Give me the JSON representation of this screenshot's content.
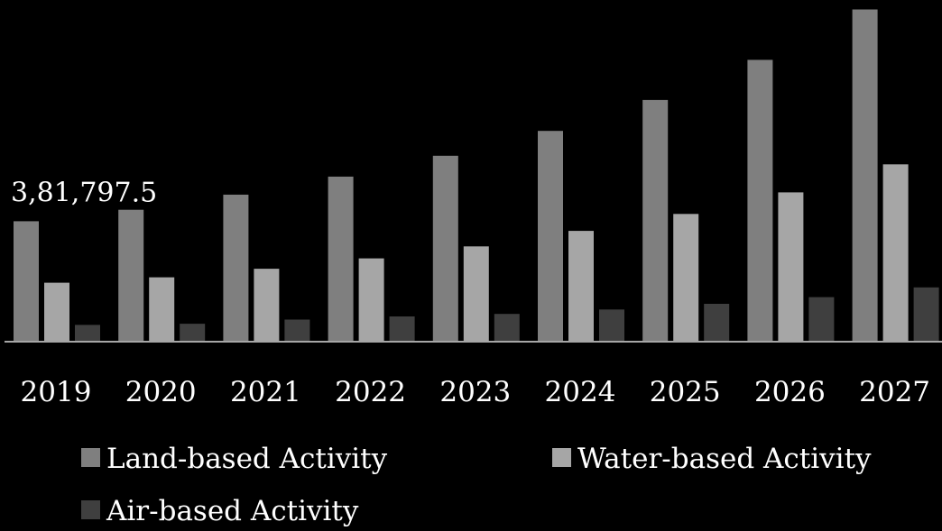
{
  "chart_data": {
    "type": "bar",
    "categories": [
      "2019",
      "2020",
      "2021",
      "2022",
      "2023",
      "2024",
      "2025",
      "2026",
      "2027"
    ],
    "series": [
      {
        "name": "Land-based Activity",
        "color": "#7f7f7f",
        "values": [
          381797.5,
          418000,
          466000,
          523000,
          589000,
          668000,
          766000,
          893000,
          1053000
        ]
      },
      {
        "name": "Water-based Activity",
        "color": "#a6a6a6",
        "values": [
          187000,
          204000,
          231000,
          264000,
          302000,
          351000,
          405000,
          473000,
          562000
        ]
      },
      {
        "name": "Air-based Activity",
        "color": "#3f3f3f",
        "values": [
          53000,
          57000,
          70000,
          80000,
          88000,
          102000,
          120000,
          141000,
          172000
        ]
      }
    ],
    "data_labels": [
      {
        "series": 0,
        "index": 0,
        "text": "3,81,797.5"
      }
    ],
    "ylim": [
      0,
      1060000
    ],
    "grid": false,
    "legend_position": "bottom",
    "colors": {
      "background": "#000000",
      "text": "#ffffff",
      "axis": "#a6a6a6"
    }
  }
}
